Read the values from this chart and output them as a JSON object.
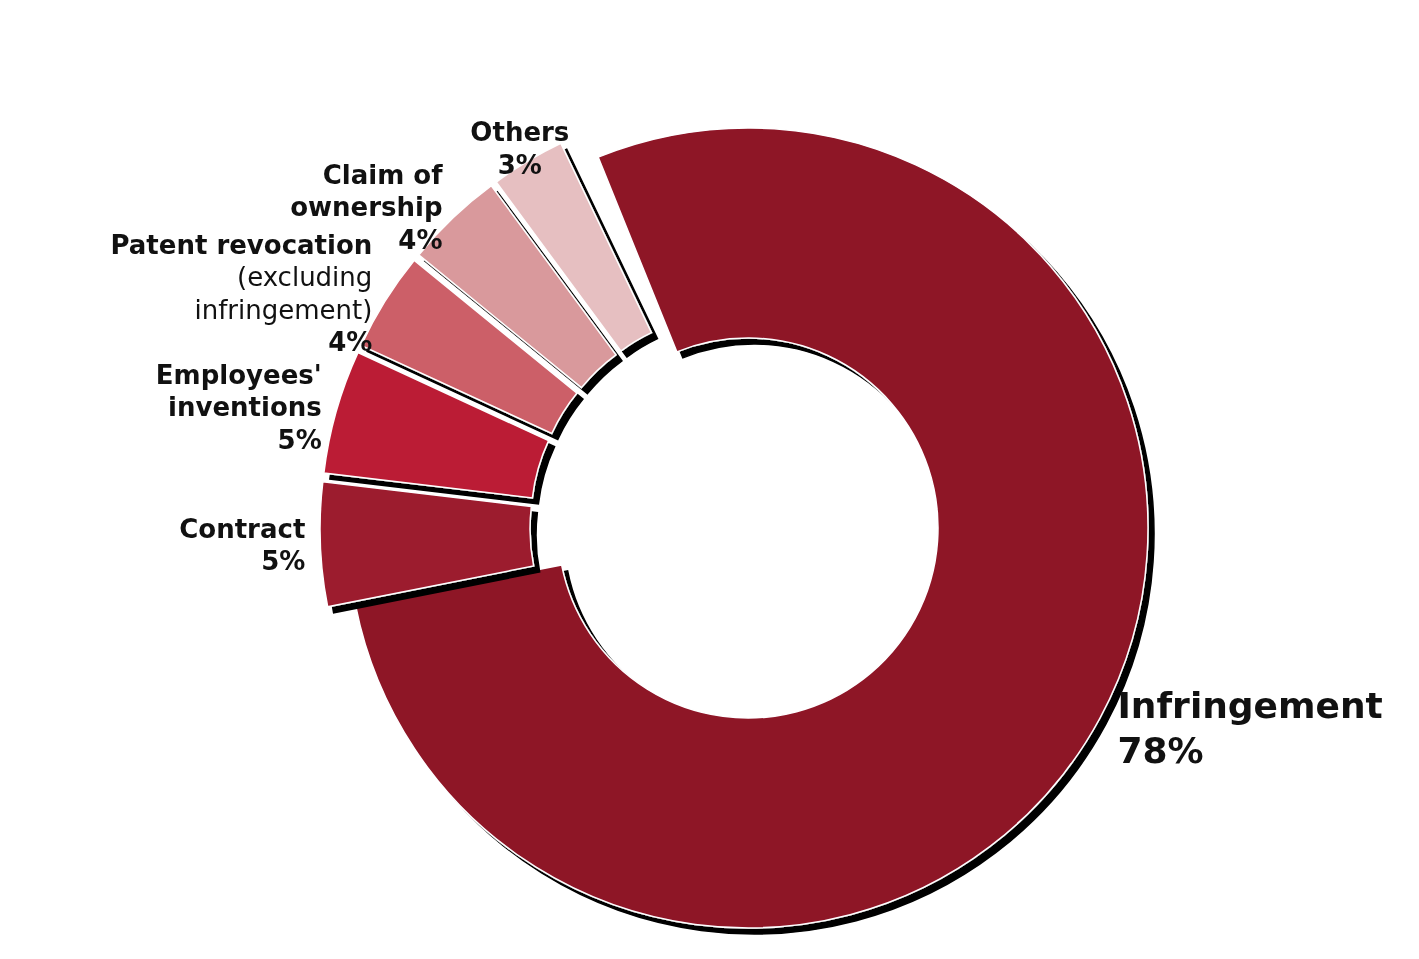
{
  "chart_data": {
    "type": "donut",
    "categories": [
      "Infringement",
      "Contract",
      "Employees' inventions",
      "Patent revocation (excluding infringement)",
      "Claim of ownership",
      "Others"
    ],
    "values": [
      78,
      5,
      5,
      4,
      4,
      3
    ],
    "value_labels": [
      "78%",
      "5%",
      "5%",
      "4%",
      "4%",
      "3%"
    ],
    "colors": [
      "#8e1428",
      "#9c1a2e",
      "#bb1e36",
      "#cc5e67",
      "#d9999c",
      "#e6bfc1"
    ]
  }
}
